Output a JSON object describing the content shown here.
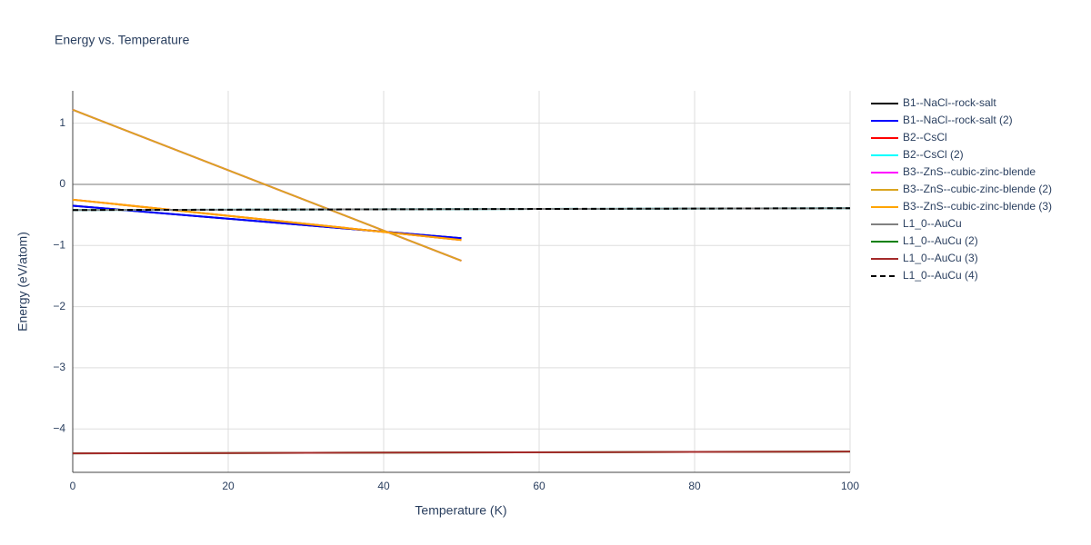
{
  "chart_data": {
    "type": "line",
    "title": "Energy vs. Temperature",
    "x_label": "Temperature (K)",
    "y_label": "Energy (eV/atom)",
    "xlim": [
      0,
      100
    ],
    "xticks": [
      0,
      20,
      40,
      60,
      80,
      100
    ],
    "ylim": [
      -4.71,
      1.53
    ],
    "yticks": [
      {
        "value": -4,
        "label": "−4"
      },
      {
        "value": -3,
        "label": "−3"
      },
      {
        "value": -2,
        "label": "−2"
      },
      {
        "value": -1,
        "label": "−1"
      },
      0,
      1
    ],
    "grid": true,
    "legend": "right",
    "series": [
      {
        "name": "B1--NaCl--rock-salt",
        "color": "#000000",
        "x": [
          0,
          50
        ],
        "values": [
          -0.35,
          -0.88
        ]
      },
      {
        "name": "B1--NaCl--rock-salt (2)",
        "color": "#0000ff",
        "x": [
          0,
          50
        ],
        "values": [
          -0.35,
          -0.88
        ]
      },
      {
        "name": "B2--CsCl",
        "color": "#ff0000",
        "x": [
          0,
          50
        ],
        "values": [
          -0.25,
          -0.91
        ]
      },
      {
        "name": "B2--CsCl (2)",
        "color": "#00ffff",
        "x": [
          0,
          100
        ],
        "values": [
          -0.42,
          -0.39
        ]
      },
      {
        "name": "B3--ZnS--cubic-zinc-blende",
        "color": "#ff00ff",
        "x": [
          0,
          50
        ],
        "values": [
          1.22,
          -1.25
        ]
      },
      {
        "name": "B3--ZnS--cubic-zinc-blende (2)",
        "color": "#daa520",
        "x": [
          0,
          50
        ],
        "values": [
          1.22,
          -1.25
        ]
      },
      {
        "name": "B3--ZnS--cubic-zinc-blende (3)",
        "color": "#ffa500",
        "x": [
          0,
          50
        ],
        "values": [
          -0.25,
          -0.91
        ]
      },
      {
        "name": "L1_0--AuCu",
        "color": "#808080",
        "x": [
          0,
          100
        ],
        "values": [
          -0.42,
          -0.39
        ]
      },
      {
        "name": "L1_0--AuCu (2)",
        "color": "#008000",
        "x": [
          0,
          100
        ],
        "values": [
          -4.4,
          -4.37
        ]
      },
      {
        "name": "L1_0--AuCu (3)",
        "color": "#a52a2a",
        "x": [
          0,
          100
        ],
        "values": [
          -4.4,
          -4.37
        ]
      },
      {
        "name": "L1_0--AuCu (4)",
        "color": "#000000",
        "dash": true,
        "x": [
          0,
          100
        ],
        "values": [
          -0.42,
          -0.39
        ]
      }
    ]
  }
}
